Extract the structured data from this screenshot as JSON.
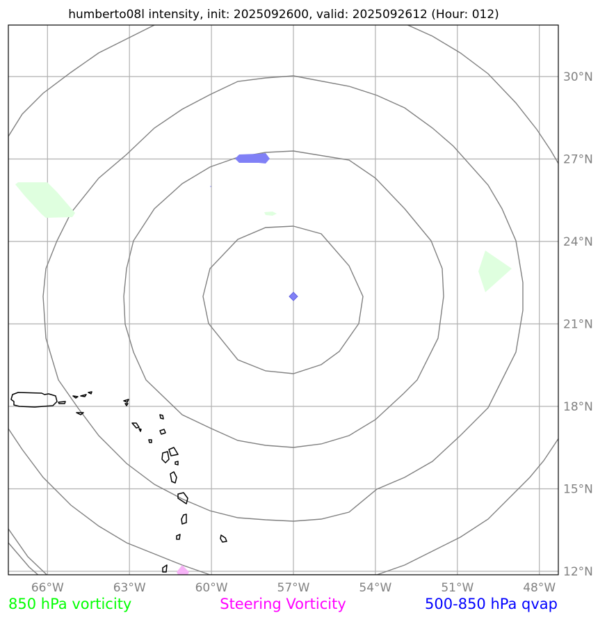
{
  "title": "humberto08l intensity, init: 2025092600, valid: 2025092612 (Hour: 012)",
  "map": {
    "lon_ticks": [
      "66°W",
      "63°W",
      "60°W",
      "57°W",
      "54°W",
      "51°W",
      "48°W"
    ],
    "lat_ticks": [
      "30°N",
      "27°N",
      "24°N",
      "21°N",
      "18°N",
      "15°N",
      "12°N"
    ],
    "lon_values": [
      -66,
      -63,
      -60,
      -57,
      -54,
      -51,
      -48
    ],
    "lat_values": [
      30,
      27,
      24,
      21,
      18,
      15,
      12
    ],
    "storm_center": {
      "lon": -57,
      "lat": 22
    },
    "range_rings": [
      1,
      2,
      3,
      4,
      5
    ]
  },
  "legend": {
    "vort850": "850 hPa vorticity",
    "steering": "Steering Vorticity",
    "qvap": "500-850 hPa qvap"
  },
  "colors": {
    "vort850": "#00ff00",
    "steering": "#ff00ff",
    "qvap": "#0000ff",
    "vort850_fill": "#dfffdf",
    "steering_fill": "#f7b3f7",
    "qvap_fill": "#8080f6",
    "grid": "#b0b0b0",
    "rings": "#808080"
  }
}
